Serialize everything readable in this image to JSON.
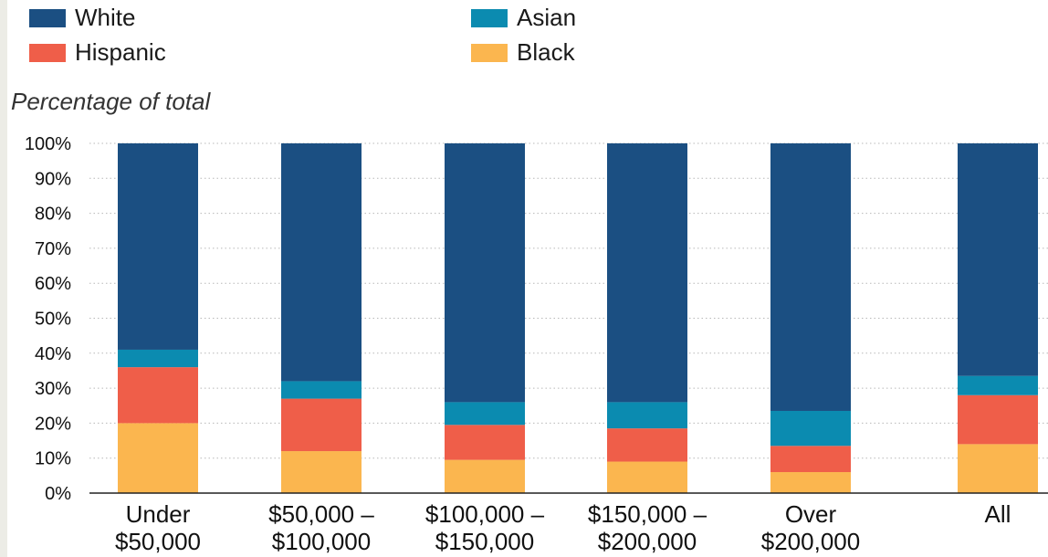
{
  "chart_data": {
    "type": "bar",
    "stacked": true,
    "title": "",
    "ylabel": "Percentage of total",
    "xlabel": "",
    "ylim": [
      0,
      100
    ],
    "yticks": [
      "0%",
      "10%",
      "20%",
      "30%",
      "40%",
      "50%",
      "60%",
      "70%",
      "80%",
      "90%",
      "100%"
    ],
    "grid": "dotted horizontal",
    "legend_position": "top",
    "categories": [
      [
        "Under",
        "$50,000"
      ],
      [
        "$50,000 –",
        "$100,000"
      ],
      [
        "$100,000 –",
        "$150,000"
      ],
      [
        "$150,000 –",
        "$200,000"
      ],
      [
        "Over",
        "$200,000"
      ],
      [
        "All"
      ]
    ],
    "series": [
      {
        "name": "Black",
        "color": "#fbb64f",
        "values": [
          20,
          12,
          9.5,
          9,
          6,
          14
        ]
      },
      {
        "name": "Hispanic",
        "color": "#ef5e49",
        "values": [
          16,
          15,
          10,
          9.5,
          7.5,
          14
        ]
      },
      {
        "name": "Asian",
        "color": "#0b8bb0",
        "values": [
          5,
          5,
          6.5,
          7.5,
          10,
          5.5
        ]
      },
      {
        "name": "White",
        "color": "#1b4f82",
        "values": [
          59,
          68,
          74,
          74,
          76.5,
          66.5
        ]
      }
    ],
    "legend": [
      {
        "name": "White",
        "color": "#1b4f82"
      },
      {
        "name": "Asian",
        "color": "#0b8bb0"
      },
      {
        "name": "Hispanic",
        "color": "#ef5e49"
      },
      {
        "name": "Black",
        "color": "#fbb64f"
      }
    ]
  }
}
